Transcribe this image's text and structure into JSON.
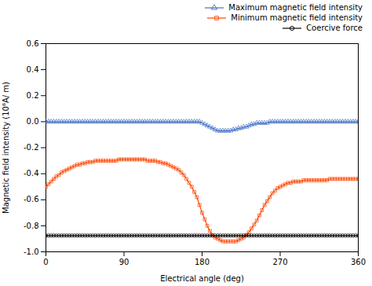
{
  "chart_data": {
    "type": "line",
    "xlabel": "Electrical angle (deg)",
    "ylabel": "Magnetic field intensity (10⁶A/ m)",
    "xlim": [
      0,
      360
    ],
    "ylim": [
      -1.0,
      0.6
    ],
    "xticks": [
      0,
      90,
      180,
      270,
      360
    ],
    "yticks": [
      {
        "value": -1.0,
        "label": "-1.0"
      },
      -0.8,
      -0.6,
      -0.4,
      -0.2,
      {
        "value": 0.0,
        "label": "0.0"
      },
      0.2,
      0.4,
      0.6
    ],
    "grid": false,
    "legend": "upper right",
    "x": [
      0,
      3,
      6,
      9,
      12,
      15,
      18,
      21,
      24,
      27,
      30,
      33,
      36,
      39,
      42,
      45,
      48,
      51,
      54,
      57,
      60,
      63,
      66,
      69,
      72,
      75,
      78,
      81,
      84,
      87,
      90,
      93,
      96,
      99,
      102,
      105,
      108,
      111,
      114,
      117,
      120,
      123,
      126,
      129,
      132,
      135,
      138,
      141,
      144,
      147,
      150,
      153,
      156,
      159,
      162,
      165,
      168,
      171,
      174,
      177,
      180,
      183,
      186,
      189,
      192,
      195,
      198,
      201,
      204,
      207,
      210,
      213,
      216,
      219,
      222,
      225,
      228,
      231,
      234,
      237,
      240,
      243,
      246,
      249,
      252,
      255,
      258,
      261,
      264,
      267,
      270,
      273,
      276,
      279,
      282,
      285,
      288,
      291,
      294,
      297,
      300,
      303,
      306,
      309,
      312,
      315,
      318,
      321,
      324,
      327,
      330,
      333,
      336,
      339,
      342,
      345,
      348,
      351,
      354,
      357,
      360
    ],
    "series": [
      {
        "name": "Maximum magnetic field intensity",
        "color": "#4472C4",
        "marker": "triangle",
        "line_style": "solid",
        "values": [
          0.0,
          0.0,
          0.0,
          0.0,
          0.0,
          0.0,
          0.0,
          0.0,
          0.0,
          0.0,
          0.0,
          0.0,
          0.0,
          0.0,
          0.0,
          0.0,
          0.0,
          0.0,
          0.0,
          0.0,
          0.0,
          0.0,
          0.0,
          0.0,
          0.0,
          0.0,
          0.0,
          0.0,
          0.0,
          0.0,
          0.0,
          0.0,
          0.0,
          0.0,
          0.0,
          0.0,
          0.0,
          0.0,
          0.0,
          0.0,
          0.0,
          0.0,
          0.0,
          0.0,
          0.0,
          0.0,
          0.0,
          0.0,
          0.0,
          0.0,
          0.0,
          0.0,
          0.0,
          0.0,
          0.0,
          0.0,
          0.0,
          0.0,
          0.0,
          0.0,
          -0.01,
          -0.02,
          -0.03,
          -0.04,
          -0.05,
          -0.06,
          -0.07,
          -0.07,
          -0.07,
          -0.07,
          -0.07,
          -0.07,
          -0.06,
          -0.06,
          -0.05,
          -0.05,
          -0.04,
          -0.04,
          -0.03,
          -0.02,
          -0.02,
          -0.01,
          -0.01,
          -0.01,
          -0.01,
          -0.01,
          0.0,
          0.0,
          0.0,
          0.0,
          0.0,
          0.0,
          0.0,
          0.0,
          0.0,
          0.0,
          0.0,
          0.0,
          0.0,
          0.0,
          0.0,
          0.0,
          0.0,
          0.0,
          0.0,
          0.0,
          0.0,
          0.0,
          0.0,
          0.0,
          0.0,
          0.0,
          0.0,
          0.0,
          0.0,
          0.0,
          0.0,
          0.0,
          0.0,
          0.0,
          0.0
        ]
      },
      {
        "name": "Minimum magnetic field intensity",
        "color": "#FF4500",
        "marker": "square",
        "line_style": "solid",
        "values": [
          -0.5,
          -0.48,
          -0.46,
          -0.44,
          -0.42,
          -0.41,
          -0.39,
          -0.38,
          -0.37,
          -0.36,
          -0.35,
          -0.34,
          -0.33,
          -0.33,
          -0.32,
          -0.32,
          -0.31,
          -0.31,
          -0.31,
          -0.3,
          -0.3,
          -0.3,
          -0.3,
          -0.3,
          -0.3,
          -0.3,
          -0.3,
          -0.3,
          -0.29,
          -0.29,
          -0.29,
          -0.29,
          -0.29,
          -0.29,
          -0.29,
          -0.29,
          -0.29,
          -0.29,
          -0.29,
          -0.3,
          -0.3,
          -0.3,
          -0.3,
          -0.31,
          -0.31,
          -0.32,
          -0.32,
          -0.33,
          -0.34,
          -0.35,
          -0.36,
          -0.37,
          -0.39,
          -0.41,
          -0.44,
          -0.47,
          -0.5,
          -0.54,
          -0.58,
          -0.64,
          -0.7,
          -0.75,
          -0.8,
          -0.84,
          -0.87,
          -0.89,
          -0.9,
          -0.91,
          -0.92,
          -0.92,
          -0.92,
          -0.92,
          -0.92,
          -0.92,
          -0.91,
          -0.9,
          -0.89,
          -0.87,
          -0.85,
          -0.82,
          -0.79,
          -0.76,
          -0.72,
          -0.68,
          -0.64,
          -0.61,
          -0.58,
          -0.55,
          -0.53,
          -0.51,
          -0.5,
          -0.49,
          -0.48,
          -0.47,
          -0.47,
          -0.46,
          -0.46,
          -0.46,
          -0.46,
          -0.45,
          -0.45,
          -0.45,
          -0.45,
          -0.45,
          -0.45,
          -0.45,
          -0.45,
          -0.45,
          -0.45,
          -0.44,
          -0.44,
          -0.44,
          -0.44,
          -0.44,
          -0.44,
          -0.44,
          -0.44,
          -0.44,
          -0.44,
          -0.44,
          -0.44
        ]
      },
      {
        "name": "Coercive force",
        "color": "#000000",
        "marker": "circle",
        "line_style": "solid",
        "values": [
          -0.875,
          -0.875,
          -0.875,
          -0.875,
          -0.875,
          -0.875,
          -0.875,
          -0.875,
          -0.875,
          -0.875,
          -0.875,
          -0.875,
          -0.875,
          -0.875,
          -0.875,
          -0.875,
          -0.875,
          -0.875,
          -0.875,
          -0.875,
          -0.875,
          -0.875,
          -0.875,
          -0.875,
          -0.875,
          -0.875,
          -0.875,
          -0.875,
          -0.875,
          -0.875,
          -0.875,
          -0.875,
          -0.875,
          -0.875,
          -0.875,
          -0.875,
          -0.875,
          -0.875,
          -0.875,
          -0.875,
          -0.875,
          -0.875,
          -0.875,
          -0.875,
          -0.875,
          -0.875,
          -0.875,
          -0.875,
          -0.875,
          -0.875,
          -0.875,
          -0.875,
          -0.875,
          -0.875,
          -0.875,
          -0.875,
          -0.875,
          -0.875,
          -0.875,
          -0.875,
          -0.875,
          -0.875,
          -0.875,
          -0.875,
          -0.875,
          -0.875,
          -0.875,
          -0.875,
          -0.875,
          -0.875,
          -0.875,
          -0.875,
          -0.875,
          -0.875,
          -0.875,
          -0.875,
          -0.875,
          -0.875,
          -0.875,
          -0.875,
          -0.875,
          -0.875,
          -0.875,
          -0.875,
          -0.875,
          -0.875,
          -0.875,
          -0.875,
          -0.875,
          -0.875,
          -0.875,
          -0.875,
          -0.875,
          -0.875,
          -0.875,
          -0.875,
          -0.875,
          -0.875,
          -0.875,
          -0.875,
          -0.875,
          -0.875,
          -0.875,
          -0.875,
          -0.875,
          -0.875,
          -0.875,
          -0.875,
          -0.875,
          -0.875,
          -0.875,
          -0.875,
          -0.875,
          -0.875,
          -0.875,
          -0.875,
          -0.875,
          -0.875,
          -0.875,
          -0.875,
          -0.875
        ]
      }
    ]
  }
}
